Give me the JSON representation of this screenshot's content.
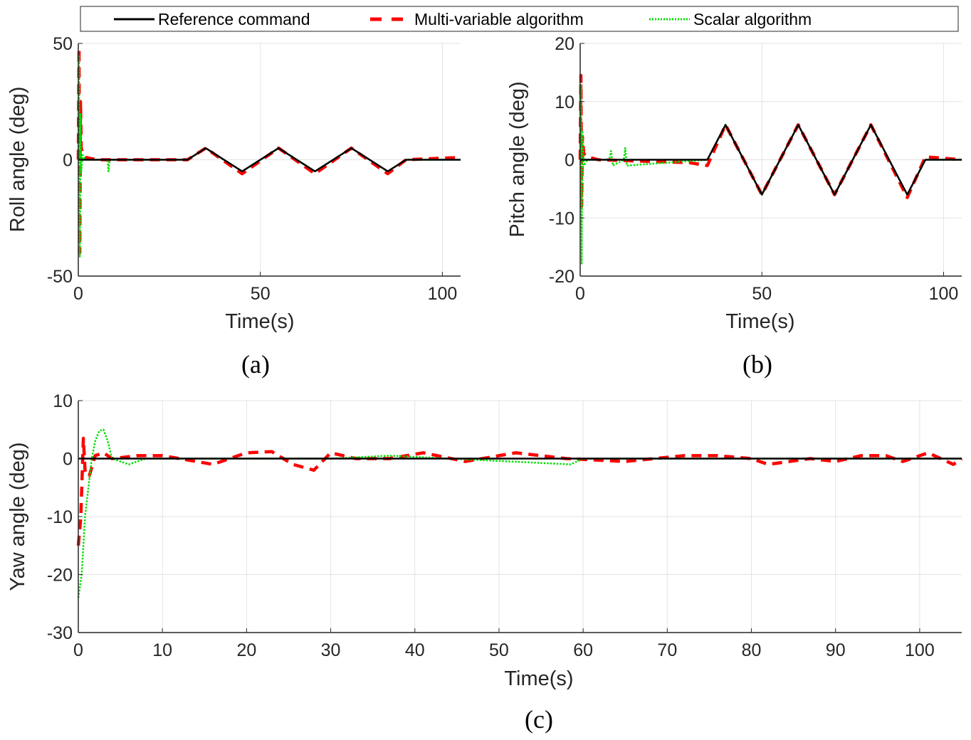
{
  "legend": {
    "items": [
      {
        "label": "Reference command",
        "color": "#000000",
        "style": "solid"
      },
      {
        "label": "Multi-variable algorithm",
        "color": "#ff0000",
        "style": "dashed"
      },
      {
        "label": "Scalar algorithm",
        "color": "#00e000",
        "style": "dotted"
      }
    ]
  },
  "chart_data": [
    {
      "type": "line",
      "caption": "(a)",
      "xlabel": "Time(s)",
      "ylabel": "Roll angle (deg)",
      "xlim": [
        0,
        105
      ],
      "ylim": [
        -50,
        50
      ],
      "xticks": [
        0,
        50,
        100
      ],
      "yticks": [
        -50,
        0,
        50
      ],
      "grid": true,
      "series": [
        {
          "name": "Reference command",
          "x": [
            0,
            30,
            35,
            45,
            55,
            65,
            75,
            85,
            90,
            105
          ],
          "y": [
            0,
            0,
            5,
            -5,
            5,
            -5,
            5,
            -5,
            0,
            0
          ]
        },
        {
          "name": "Multi-variable algorithm",
          "x": [
            0,
            0.2,
            0.4,
            0.6,
            0.8,
            1.2,
            2,
            5,
            30,
            35,
            45,
            55,
            65,
            75,
            85,
            90,
            105
          ],
          "y": [
            0,
            48,
            -40,
            25,
            5,
            3,
            1,
            0,
            0,
            5,
            -6,
            5,
            -6,
            5,
            -6,
            0,
            1
          ]
        },
        {
          "name": "Scalar algorithm",
          "x": [
            0,
            0.2,
            0.4,
            0.6,
            0.8,
            1.2,
            2,
            8,
            8.3,
            8.6,
            30,
            35,
            45,
            55,
            65,
            75,
            85,
            90,
            105
          ],
          "y": [
            0,
            45,
            -42,
            20,
            -5,
            2,
            0,
            0,
            -5,
            0,
            0,
            5,
            -5,
            5,
            -5,
            5,
            -5,
            0,
            0
          ]
        }
      ]
    },
    {
      "type": "line",
      "caption": "(b)",
      "xlabel": "Time(s)",
      "ylabel": "Pitch angle (deg)",
      "xlim": [
        0,
        105
      ],
      "ylim": [
        -20,
        20
      ],
      "xticks": [
        0,
        50,
        100
      ],
      "yticks": [
        -20,
        -10,
        0,
        10,
        20
      ],
      "grid": true,
      "series": [
        {
          "name": "Reference command",
          "x": [
            0,
            35,
            40,
            50,
            60,
            70,
            80,
            90,
            95,
            105
          ],
          "y": [
            0,
            0,
            6,
            -6,
            6,
            -6,
            6,
            -6,
            0,
            0
          ]
        },
        {
          "name": "Multi-variable algorithm",
          "x": [
            0,
            0.2,
            0.4,
            0.6,
            1,
            2,
            5,
            30,
            35,
            40,
            50,
            60,
            70,
            80,
            90,
            95,
            105
          ],
          "y": [
            0,
            14.5,
            -8,
            4,
            1,
            0.5,
            0,
            -0.5,
            -1,
            6,
            -6,
            6,
            -6,
            6,
            -6.5,
            0.5,
            0
          ]
        },
        {
          "name": "Scalar algorithm",
          "x": [
            0,
            0.2,
            0.4,
            0.6,
            1,
            2,
            8,
            8.5,
            9,
            12,
            12.4,
            12.8,
            35,
            40,
            50,
            60,
            70,
            80,
            90,
            95,
            105
          ],
          "y": [
            0,
            13,
            -18,
            5,
            -1,
            0,
            0,
            1.5,
            -1,
            0,
            2,
            -1,
            0,
            6,
            -6,
            6,
            -6,
            6,
            -6,
            0,
            0
          ]
        }
      ]
    },
    {
      "type": "line",
      "caption": "(c)",
      "xlabel": "Time(s)",
      "ylabel": "Yaw angle (deg)",
      "xlim": [
        0,
        105
      ],
      "ylim": [
        -30,
        10
      ],
      "xticks": [
        0,
        10,
        20,
        30,
        40,
        50,
        60,
        70,
        80,
        90,
        100
      ],
      "yticks": [
        -30,
        -20,
        -10,
        0,
        10
      ],
      "grid": true,
      "series": [
        {
          "name": "Reference command",
          "x": [
            0,
            105
          ],
          "y": [
            0,
            0
          ]
        },
        {
          "name": "Multi-variable algorithm",
          "x": [
            0,
            0.3,
            0.6,
            0.8,
            1,
            1.3,
            2,
            3,
            4,
            7,
            10,
            16,
            20,
            23,
            25.5,
            28,
            30,
            33,
            37,
            41,
            46,
            52,
            58,
            65,
            72,
            76,
            80,
            82,
            87,
            90,
            93,
            96,
            98,
            101,
            104,
            105
          ],
          "y": [
            -15,
            -10,
            3.5,
            -2,
            -3,
            -3,
            0.5,
            1,
            0,
            0.5,
            0.5,
            -1,
            1,
            1.2,
            -1,
            -2,
            1,
            0,
            0,
            1,
            -0.5,
            1,
            0,
            -0.5,
            0.5,
            0.5,
            0,
            -1,
            0,
            -0.5,
            0.5,
            0.5,
            -0.5,
            1,
            -1,
            0
          ]
        },
        {
          "name": "Scalar algorithm",
          "x": [
            0,
            0.4,
            0.8,
            1.2,
            1.6,
            2,
            2.5,
            3,
            3.5,
            4,
            5,
            6,
            8,
            30,
            37,
            58.5,
            60,
            105
          ],
          "y": [
            -24,
            -20,
            -10,
            -5,
            0,
            3,
            4.8,
            5,
            3,
            0,
            -0.5,
            -1,
            0,
            0,
            0.5,
            -1,
            0,
            0
          ]
        }
      ]
    }
  ]
}
